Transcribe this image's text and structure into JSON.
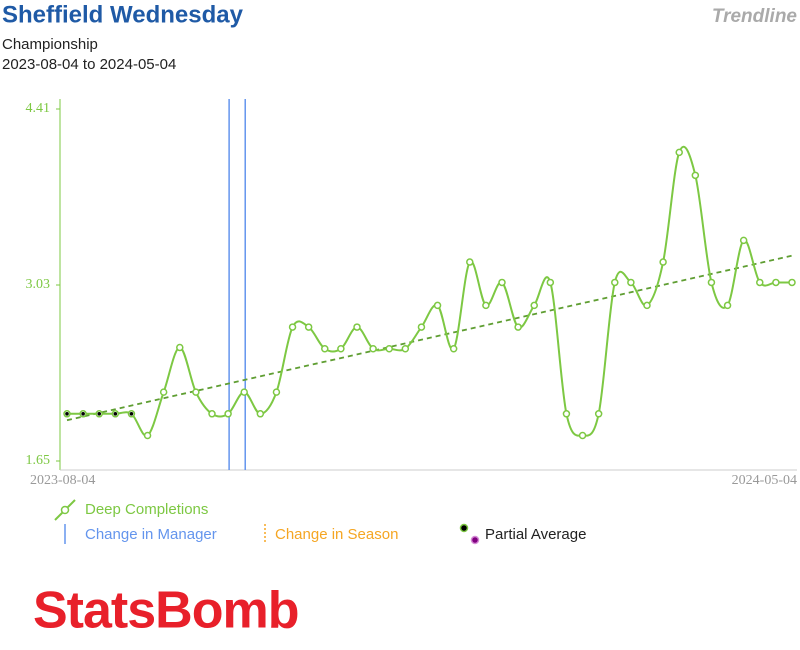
{
  "chart_data": {
    "type": "line",
    "title": "Sheffield Wednesday",
    "badge": "Trendline",
    "subtitle": "Championship",
    "date_range": "2023-08-04 to 2024-05-04",
    "categories": [
      "2023-08-04",
      null,
      null,
      null,
      null,
      null,
      null,
      null,
      null,
      null,
      null,
      null,
      null,
      null,
      null,
      null,
      null,
      null,
      null,
      null,
      null,
      null,
      null,
      null,
      null,
      null,
      null,
      null,
      null,
      null,
      null,
      null,
      null,
      null,
      null,
      null,
      null,
      null,
      null,
      null,
      null,
      null,
      null,
      null,
      null,
      "2024-05-04"
    ],
    "series": [
      {
        "name": "Deep Completions",
        "color": "#7dc843",
        "values": [
          2.02,
          2.02,
          2.02,
          2.02,
          2.02,
          1.85,
          2.19,
          2.54,
          2.19,
          2.02,
          2.02,
          2.19,
          2.02,
          2.19,
          2.7,
          2.7,
          2.53,
          2.53,
          2.7,
          2.53,
          2.53,
          2.53,
          2.7,
          2.87,
          2.53,
          3.21,
          2.87,
          3.05,
          2.7,
          2.87,
          3.05,
          2.02,
          1.85,
          2.02,
          3.05,
          3.05,
          2.87,
          3.21,
          4.07,
          3.89,
          3.05,
          2.87,
          3.38,
          3.05,
          3.05,
          3.05
        ]
      }
    ],
    "partial_average": [
      0,
      1,
      2,
      3,
      4
    ],
    "manager_changes": [
      10,
      11
    ],
    "trendline": {
      "start": 1.97,
      "end": 3.26,
      "color": "#5f9e32"
    },
    "ylim": [
      1.65,
      4.41
    ],
    "yticks": [
      1.65,
      3.03,
      4.41
    ],
    "legend": {
      "line": "Deep Completions",
      "manager": "Change in Manager",
      "season": "Change in Season",
      "partial": "Partial Average"
    },
    "manager_color": "#6495ed",
    "season_color": "#f5a623",
    "logo": "StatsBomb"
  }
}
